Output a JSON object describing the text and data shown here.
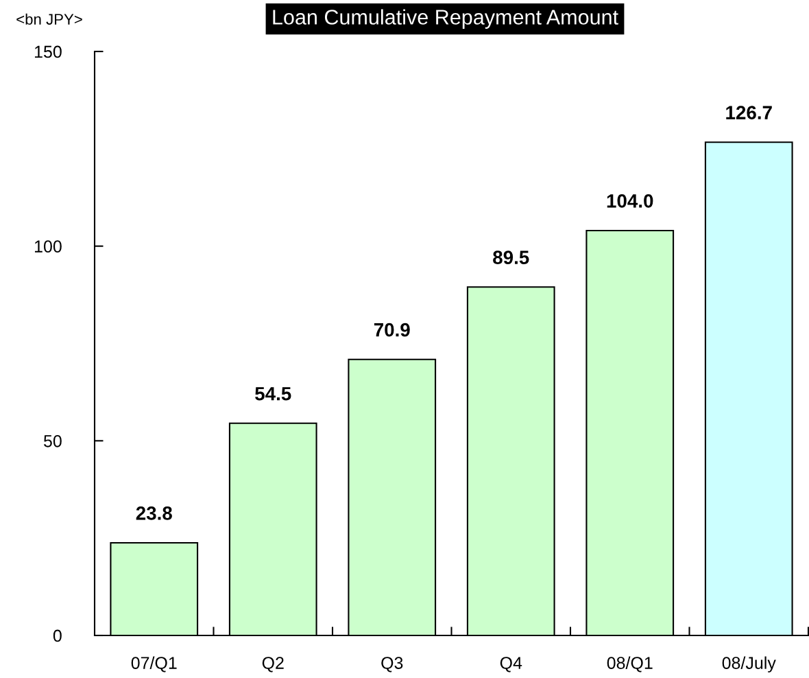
{
  "chart_data": {
    "type": "bar",
    "title": "Loan Cumulative Repayment Amount",
    "ylabel": "<bn JPY>",
    "categories": [
      "07/Q1",
      "Q2",
      "Q3",
      "Q4",
      "08/Q1",
      "08/July"
    ],
    "values": [
      23.8,
      54.5,
      70.9,
      89.5,
      104.0,
      126.7
    ],
    "value_labels": [
      "23.8",
      "54.5",
      "70.9",
      "89.5",
      "104.0",
      "126.7"
    ],
    "colors": [
      "#ccffcc",
      "#ccffcc",
      "#ccffcc",
      "#ccffcc",
      "#ccffcc",
      "#ccffff"
    ],
    "ylim": [
      0,
      150
    ],
    "yticks": [
      0,
      50,
      100,
      150
    ],
    "grid": false
  }
}
